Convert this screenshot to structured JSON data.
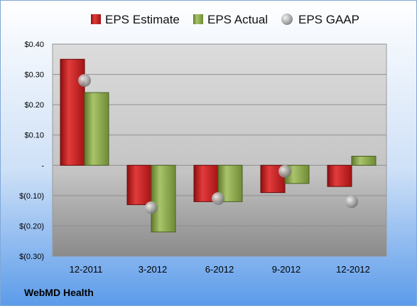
{
  "chart_data": {
    "type": "bar",
    "categories": [
      "12-2011",
      "3-2012",
      "6-2012",
      "9-2012",
      "12-2012"
    ],
    "series": [
      {
        "name": "EPS Estimate",
        "values": [
          0.35,
          -0.13,
          -0.12,
          -0.09,
          -0.07
        ],
        "color": "#cc1f1f"
      },
      {
        "name": "EPS Actual",
        "values": [
          0.24,
          -0.22,
          -0.12,
          -0.06,
          0.03
        ],
        "color": "#8aa84a"
      },
      {
        "name": "EPS GAAP",
        "values": [
          0.28,
          -0.14,
          -0.11,
          -0.02,
          -0.12
        ],
        "color": "#a8a8a8",
        "marker": "circle"
      }
    ],
    "yticks": [
      "$0.40",
      "$0.30",
      "$0.20",
      "$0.10",
      "-",
      "$(0.10)",
      "$(0.20)",
      "$(0.30)"
    ],
    "ytick_values": [
      0.4,
      0.3,
      0.2,
      0.1,
      0,
      -0.1,
      -0.2,
      -0.3
    ],
    "ylim": [
      -0.3,
      0.4
    ],
    "grid": true,
    "legend_position": "top"
  },
  "source_label": "WebMD Health"
}
